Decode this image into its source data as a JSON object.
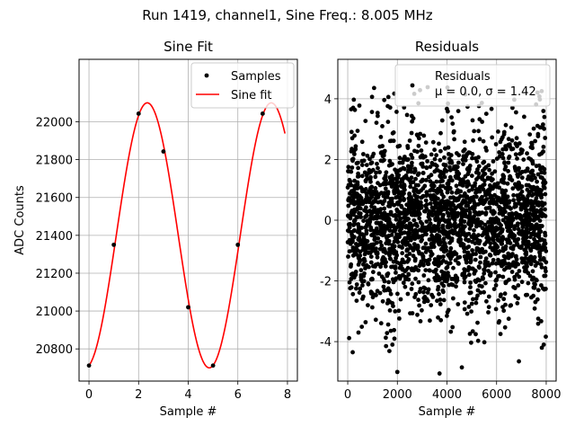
{
  "figure": {
    "suptitle": "Run 1419, channel1, Sine Freq.: 8.005 MHz"
  },
  "chart_data": [
    {
      "type": "line",
      "title": "Sine Fit",
      "xlabel": "Sample #",
      "ylabel": "ADC Counts",
      "xlim": [
        -0.4,
        8.4
      ],
      "ylim": [
        20630,
        22330
      ],
      "xticks": [
        0,
        2,
        4,
        6,
        8
      ],
      "yticks": [
        20800,
        21000,
        21200,
        21400,
        21600,
        21800,
        22000
      ],
      "grid": true,
      "legend_position": "top-right",
      "series": [
        {
          "name": "Samples",
          "kind": "scatter",
          "color": "#000000",
          "x": [
            0,
            1,
            2,
            3,
            4,
            5,
            6,
            7
          ],
          "y": [
            20712,
            21350,
            22043,
            21843,
            21020,
            20712,
            21350,
            22043
          ]
        },
        {
          "name": "Sine fit",
          "kind": "line",
          "color": "#ff0000",
          "model": {
            "offset": 21400,
            "amplitude": 700,
            "period_samples": 4.998,
            "phase_samples": -0.45,
            "x_range": [
              0,
              7.9
            ]
          }
        }
      ]
    },
    {
      "type": "scatter",
      "title": "Residuals",
      "xlabel": "Sample #",
      "ylabel": "",
      "xlim": [
        -400,
        8400
      ],
      "ylim": [
        -5.3,
        5.3
      ],
      "xticks": [
        0,
        2000,
        4000,
        6000,
        8000
      ],
      "yticks": [
        -4,
        -2,
        0,
        2,
        4
      ],
      "grid": true,
      "legend_position": "top-right",
      "series": [
        {
          "name": "Residuals",
          "color": "#000000",
          "n_points": 8000,
          "mean": 0.0,
          "sigma": 1.42,
          "note_label": "μ = 0.0, σ = 1.42",
          "outliers": [
            {
              "x": 2000,
              "y": -5.0
            },
            {
              "x": 3700,
              "y": -5.05
            },
            {
              "x": 4600,
              "y": -4.85
            },
            {
              "x": 6900,
              "y": -4.65
            },
            {
              "x": 200,
              "y": -4.35
            },
            {
              "x": 1800,
              "y": -4.1
            },
            {
              "x": 7900,
              "y": -4.1
            }
          ]
        }
      ]
    }
  ]
}
